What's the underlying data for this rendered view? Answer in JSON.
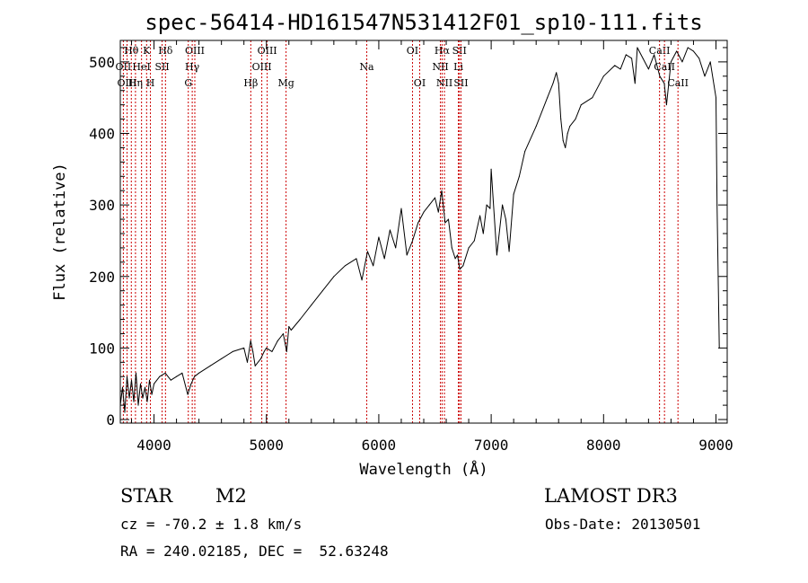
{
  "info": {
    "class": "STAR",
    "subclass": "M2",
    "survey": "LAMOST DR3",
    "cz": "cz = -70.2 ± 1.8 km/s",
    "obs_date": "Obs-Date: 20130501",
    "coords": "RA = 240.02185, DEC =  52.63248"
  },
  "chart_data": {
    "type": "line",
    "title": "spec-56414-HD161547N531412F01_sp10-111.fits",
    "xlabel": "Wavelength (Å)",
    "ylabel": "Flux (relative)",
    "xlim": [
      3700,
      9100
    ],
    "ylim": [
      -5,
      530
    ],
    "xticks": [
      4000,
      5000,
      6000,
      7000,
      8000,
      9000
    ],
    "yticks": [
      0,
      100,
      200,
      300,
      400,
      500
    ],
    "grid": false,
    "series": [
      {
        "name": "flux",
        "x": [
          3700,
          3720,
          3740,
          3760,
          3780,
          3800,
          3820,
          3840,
          3860,
          3880,
          3900,
          3920,
          3940,
          3960,
          3980,
          4000,
          4050,
          4100,
          4150,
          4200,
          4250,
          4300,
          4330,
          4360,
          4400,
          4500,
          4600,
          4700,
          4800,
          4830,
          4860,
          4880,
          4900,
          4950,
          4980,
          5000,
          5050,
          5100,
          5150,
          5180,
          5200,
          5220,
          5300,
          5400,
          5500,
          5600,
          5700,
          5800,
          5850,
          5900,
          5950,
          6000,
          6050,
          6100,
          6150,
          6200,
          6250,
          6300,
          6350,
          6400,
          6450,
          6500,
          6530,
          6560,
          6590,
          6620,
          6650,
          6680,
          6700,
          6720,
          6750,
          6800,
          6850,
          6900,
          6930,
          6960,
          6990,
          7000,
          7050,
          7100,
          7130,
          7160,
          7200,
          7250,
          7300,
          7400,
          7500,
          7550,
          7580,
          7600,
          7620,
          7640,
          7660,
          7680,
          7700,
          7750,
          7800,
          7900,
          8000,
          8100,
          8150,
          8200,
          8250,
          8280,
          8300,
          8350,
          8400,
          8450,
          8500,
          8540,
          8560,
          8600,
          8650,
          8700,
          8750,
          8800,
          8850,
          8900,
          8950,
          9000,
          9010,
          9030
        ],
        "values": [
          20,
          45,
          10,
          60,
          30,
          55,
          25,
          65,
          20,
          50,
          30,
          45,
          25,
          55,
          35,
          50,
          60,
          65,
          55,
          60,
          65,
          35,
          50,
          60,
          65,
          75,
          85,
          95,
          100,
          80,
          110,
          95,
          75,
          85,
          95,
          100,
          95,
          110,
          120,
          95,
          130,
          125,
          140,
          160,
          180,
          200,
          215,
          225,
          195,
          235,
          215,
          255,
          225,
          265,
          240,
          295,
          230,
          250,
          275,
          290,
          300,
          310,
          290,
          320,
          275,
          280,
          240,
          225,
          230,
          210,
          215,
          240,
          250,
          285,
          260,
          300,
          295,
          350,
          230,
          300,
          280,
          235,
          315,
          340,
          375,
          410,
          450,
          470,
          485,
          470,
          420,
          390,
          380,
          400,
          410,
          420,
          440,
          450,
          480,
          495,
          490,
          510,
          505,
          470,
          520,
          505,
          490,
          510,
          480,
          470,
          440,
          500,
          515,
          500,
          520,
          515,
          505,
          480,
          500,
          450,
          300,
          100
        ],
        "color": "#000000"
      }
    ],
    "line_color": "#cc0000",
    "lines": [
      {
        "label": "Hθ",
        "wave": 3798,
        "row": 0
      },
      {
        "label": "K",
        "wave": 3934,
        "row": 0
      },
      {
        "label": "Hδ",
        "wave": 4102,
        "row": 0
      },
      {
        "label": "OIII",
        "wave": 4363,
        "row": 0
      },
      {
        "label": "OIII",
        "wave": 5007,
        "row": 0
      },
      {
        "label": "OI",
        "wave": 6300,
        "row": 0
      },
      {
        "label": "Hα",
        "wave": 6563,
        "row": 0
      },
      {
        "label": "SII",
        "wave": 6717,
        "row": 0
      },
      {
        "label": "CaII",
        "wave": 8498,
        "row": 0
      },
      {
        "label": "OII",
        "wave": 3727,
        "row": 1
      },
      {
        "label": "HeI",
        "wave": 3889,
        "row": 1
      },
      {
        "label": "SII",
        "wave": 4072,
        "row": 1
      },
      {
        "label": "Hγ",
        "wave": 4340,
        "row": 1
      },
      {
        "label": "OIII",
        "wave": 4959,
        "row": 1
      },
      {
        "label": "Na",
        "wave": 5893,
        "row": 1
      },
      {
        "label": "NII",
        "wave": 6548,
        "row": 1
      },
      {
        "label": "Li",
        "wave": 6708,
        "row": 1
      },
      {
        "label": "CaII",
        "wave": 8542,
        "row": 1
      },
      {
        "label": "OIII",
        "wave": 3760,
        "row": 2
      },
      {
        "label": "Hη",
        "wave": 3835,
        "row": 2
      },
      {
        "label": "H",
        "wave": 3968,
        "row": 2
      },
      {
        "label": "G",
        "wave": 4305,
        "row": 2
      },
      {
        "label": "Hβ",
        "wave": 4861,
        "row": 2
      },
      {
        "label": "Mg",
        "wave": 5175,
        "row": 2
      },
      {
        "label": "OI",
        "wave": 6364,
        "row": 2
      },
      {
        "label": "NII",
        "wave": 6584,
        "row": 2
      },
      {
        "label": "SII",
        "wave": 6731,
        "row": 2
      },
      {
        "label": "CaII",
        "wave": 8662,
        "row": 2
      }
    ]
  }
}
